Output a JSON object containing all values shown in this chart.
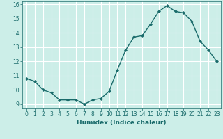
{
  "x": [
    0,
    1,
    2,
    3,
    4,
    5,
    6,
    7,
    8,
    9,
    10,
    11,
    12,
    13,
    14,
    15,
    16,
    17,
    18,
    19,
    20,
    21,
    22,
    23
  ],
  "y": [
    10.8,
    10.6,
    10.0,
    9.8,
    9.3,
    9.3,
    9.3,
    9.0,
    9.3,
    9.4,
    9.9,
    11.4,
    12.8,
    13.7,
    13.8,
    14.6,
    15.5,
    15.9,
    15.5,
    15.4,
    14.8,
    13.4,
    12.8,
    12.0
  ],
  "line_color": "#1a6b6b",
  "marker": "D",
  "marker_size": 2,
  "bg_color": "#cceee8",
  "grid_color": "#ffffff",
  "xlabel": "Humidex (Indice chaleur)",
  "xlim": [
    -0.5,
    23.5
  ],
  "ylim": [
    8.7,
    16.2
  ],
  "yticks": [
    9,
    10,
    11,
    12,
    13,
    14,
    15,
    16
  ],
  "xticks": [
    0,
    1,
    2,
    3,
    4,
    5,
    6,
    7,
    8,
    9,
    10,
    11,
    12,
    13,
    14,
    15,
    16,
    17,
    18,
    19,
    20,
    21,
    22,
    23
  ],
  "tick_color": "#1a6b6b",
  "label_fontsize": 6.5,
  "tick_fontsize": 5.5,
  "line_width": 1.0
}
